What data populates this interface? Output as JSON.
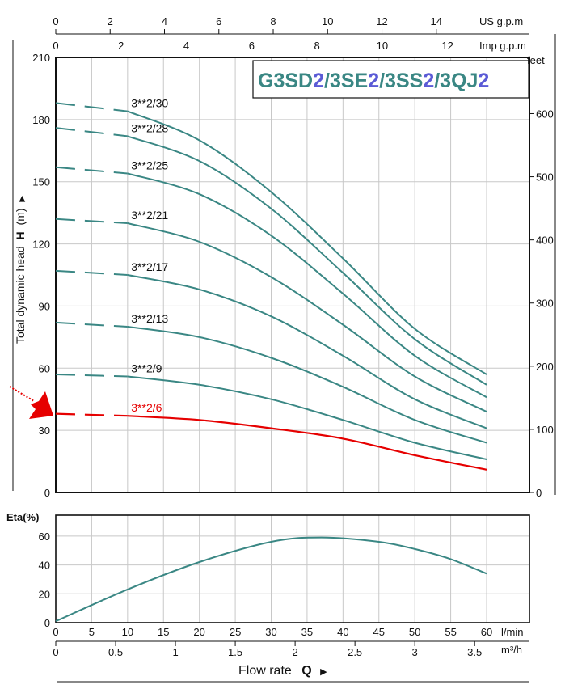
{
  "title_parts": [
    {
      "text": "G3SD",
      "color": "#3a8784"
    },
    {
      "text": "2",
      "color": "#5b5bd6"
    },
    {
      "text": "/3SE",
      "color": "#3a8784"
    },
    {
      "text": "2",
      "color": "#5b5bd6"
    },
    {
      "text": "/3SS",
      "color": "#3a8784"
    },
    {
      "text": "2",
      "color": "#5b5bd6"
    },
    {
      "text": "/3QJ",
      "color": "#3a8784"
    },
    {
      "text": "2",
      "color": "#5b5bd6"
    }
  ],
  "colors": {
    "curve": "#3a8784",
    "highlight": "#e60000",
    "grid": "#c8c8c8",
    "axis": "#111111"
  },
  "labels": {
    "us_gpm": "US g.p.m",
    "imp_gpm": "Imp g.p.m",
    "feet": "feet",
    "head_axis": "Total dynamic head",
    "head_symbol": "H",
    "head_unit": "(m)",
    "eta_axis": "Eta(%)",
    "lmin": "l/min",
    "m3h": "m³/h",
    "flow_rate": "Flow rate",
    "flow_symbol": "Q"
  },
  "axes": {
    "lmin_ticks": [
      0,
      5,
      10,
      15,
      20,
      25,
      30,
      35,
      40,
      45,
      50,
      55,
      60
    ],
    "m3h_ticks": [
      "0",
      "0.5",
      "1",
      "1.5",
      "2",
      "2.5",
      "3",
      "3.5"
    ],
    "us_gpm_ticks": [
      0,
      2,
      4,
      6,
      8,
      10,
      12,
      14
    ],
    "imp_gpm_ticks": [
      0,
      2,
      4,
      6,
      8,
      10,
      12
    ],
    "head_m_ticks": [
      0,
      30,
      60,
      90,
      120,
      150,
      180,
      210
    ],
    "head_ft_ticks": [
      0,
      100,
      200,
      300,
      400,
      500,
      600
    ],
    "eta_ticks": [
      0,
      20,
      40,
      60
    ]
  },
  "chart_data": [
    {
      "type": "line",
      "xlabel": "Flow rate Q",
      "ylabel": "Total dynamic head H (m)",
      "xlim": [
        0,
        60
      ],
      "ylim": [
        0,
        210
      ],
      "x_unit": "l/min",
      "dashed_below_x": 10,
      "highlight_series": "3**2/6",
      "series": [
        {
          "name": "3**2/30",
          "x": [
            0,
            10,
            20,
            30,
            40,
            50,
            60
          ],
          "values": [
            188,
            184,
            170,
            145,
            113,
            79,
            57
          ]
        },
        {
          "name": "3**2/28",
          "x": [
            0,
            10,
            20,
            30,
            40,
            50,
            60
          ],
          "values": [
            176,
            172,
            160,
            137,
            106,
            74,
            52
          ]
        },
        {
          "name": "3**2/25",
          "x": [
            0,
            10,
            20,
            30,
            40,
            50,
            60
          ],
          "values": [
            157,
            154,
            144,
            124,
            96,
            66,
            46
          ]
        },
        {
          "name": "3**2/21",
          "x": [
            0,
            10,
            20,
            30,
            40,
            50,
            60
          ],
          "values": [
            132,
            130,
            121,
            104,
            81,
            56,
            39
          ]
        },
        {
          "name": "3**2/17",
          "x": [
            0,
            10,
            20,
            30,
            40,
            50,
            60
          ],
          "values": [
            107,
            105,
            98,
            85,
            66,
            45,
            31
          ]
        },
        {
          "name": "3**2/13",
          "x": [
            0,
            10,
            20,
            30,
            40,
            50,
            60
          ],
          "values": [
            82,
            80,
            75,
            65,
            51,
            35,
            24
          ]
        },
        {
          "name": "3**2/9",
          "x": [
            0,
            10,
            20,
            30,
            40,
            50,
            60
          ],
          "values": [
            57,
            56,
            52,
            45,
            35,
            24,
            16
          ]
        },
        {
          "name": "3**2/6",
          "x": [
            0,
            10,
            20,
            30,
            40,
            50,
            60
          ],
          "values": [
            38,
            37,
            35,
            31,
            26,
            18,
            11
          ]
        }
      ]
    },
    {
      "type": "line",
      "xlabel": "Flow rate Q",
      "ylabel": "Eta(%)",
      "xlim": [
        0,
        60
      ],
      "ylim": [
        0,
        70
      ],
      "series": [
        {
          "name": "Eta",
          "x": [
            0,
            10,
            20,
            30,
            37,
            45,
            50,
            55,
            60
          ],
          "values": [
            1,
            23,
            42,
            56,
            59,
            56,
            51,
            44,
            34
          ]
        }
      ]
    }
  ]
}
